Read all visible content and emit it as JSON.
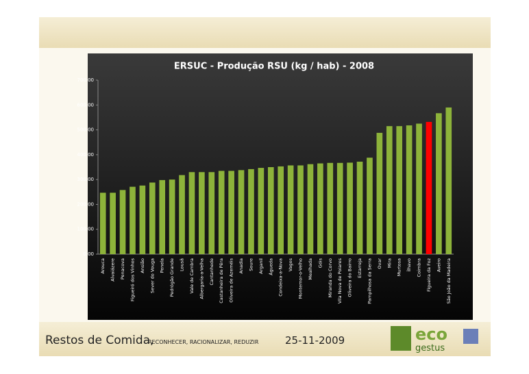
{
  "chart_data": {
    "type": "bar",
    "title": "ERSUC - Produção RSU (kg / hab) - 2008",
    "categories": [
      "Arouca",
      "Alvaiázere",
      "Penacova",
      "Figueiró dos Vinhos",
      "Ansião",
      "Sever do Vouga",
      "Penela",
      "Pedrógão Grande",
      "Lousã",
      "Vale de Cambra",
      "Albergaria-a-Velha",
      "Cantanhede",
      "Castanheira de Pêra",
      "Oliveira de Azeméis",
      "Anadia",
      "Soure",
      "Arganil",
      "Águeda",
      "Condeixa-a-Nova",
      "Vagos",
      "Montemor-o-Velho",
      "Mealhada",
      "Góis",
      "Miranda do Corvo",
      "Vila Nova de Poiares",
      "Oliveira do Bairro",
      "Estarreja",
      "Pampilhosa da Serra",
      "Ovar",
      "Mira",
      "Murtosa",
      "Ílhavo",
      "Coimbra",
      "Figueira da Foz",
      "Aveiro",
      "São João da Madeira"
    ],
    "values": [
      247,
      247,
      258,
      271,
      276,
      288,
      298,
      300,
      318,
      330,
      330,
      330,
      335,
      335,
      338,
      342,
      347,
      350,
      353,
      357,
      357,
      362,
      365,
      367,
      367,
      368,
      372,
      388,
      488,
      515,
      515,
      518,
      525,
      532,
      567,
      590
    ],
    "colors": [
      "#8db33a",
      "#8db33a",
      "#8db33a",
      "#8db33a",
      "#8db33a",
      "#8db33a",
      "#8db33a",
      "#8db33a",
      "#8db33a",
      "#8db33a",
      "#8db33a",
      "#8db33a",
      "#8db33a",
      "#8db33a",
      "#8db33a",
      "#8db33a",
      "#8db33a",
      "#8db33a",
      "#8db33a",
      "#8db33a",
      "#8db33a",
      "#8db33a",
      "#8db33a",
      "#8db33a",
      "#8db33a",
      "#8db33a",
      "#8db33a",
      "#8db33a",
      "#8db33a",
      "#8db33a",
      "#8db33a",
      "#8db33a",
      "#8db33a",
      "#ff0000",
      "#8db33a",
      "#8db33a"
    ],
    "ylim": [
      0,
      700
    ],
    "yticks": [
      {
        "value": 0,
        "label": "0.00"
      },
      {
        "value": 100,
        "label": "100.00"
      },
      {
        "value": 200,
        "label": "200.00"
      },
      {
        "value": 300,
        "label": "300.00"
      },
      {
        "value": 400,
        "label": "400.00"
      },
      {
        "value": 500,
        "label": "500.00"
      },
      {
        "value": 600,
        "label": "600.00"
      },
      {
        "value": 700,
        "label": "700.00"
      }
    ]
  },
  "footer": {
    "title": "Restos de Comida,",
    "subtitle": "RECONHECER, RACIONALIZAR, REDUZIR",
    "date": "25-11-2009",
    "logo_top": "eco",
    "logo_bottom": "gestus"
  }
}
